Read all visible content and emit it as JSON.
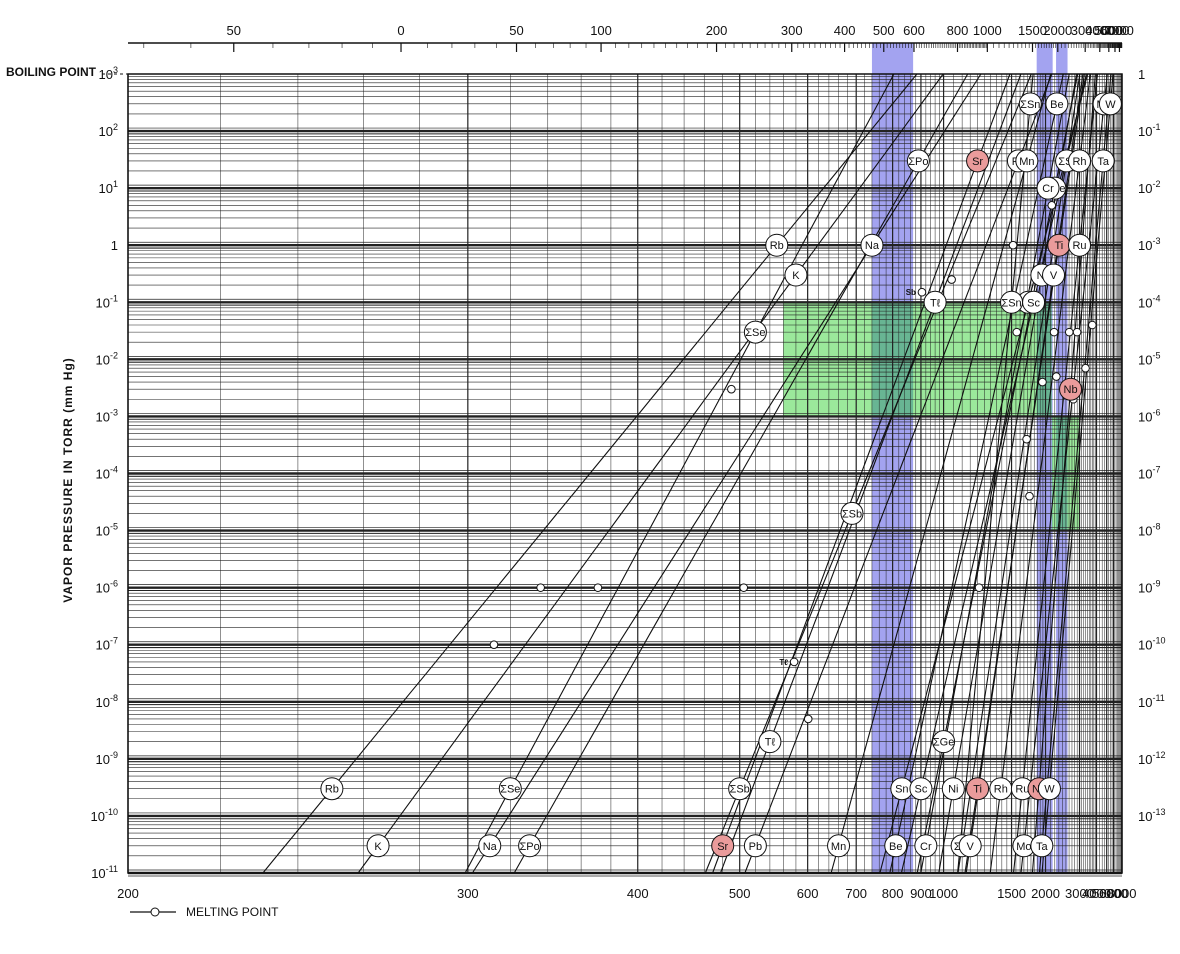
{
  "chart_data": {
    "type": "line",
    "title": "",
    "ylabel": "VAPOR PRESSURE IN TORR (mm Hg)",
    "boiling_point_label": "BOILING POINT",
    "legend": {
      "symbol": "open-circle",
      "label": "MELTING POINT"
    },
    "bottom_axis": {
      "unit": "K",
      "scale": "reciprocal",
      "range": [
        200,
        8000
      ],
      "tick_labels": [
        "200",
        "300",
        "400",
        "500",
        "600",
        "700",
        "800",
        "900",
        "1000",
        "1500",
        "2000",
        "3000",
        "4000",
        "5000",
        "6000",
        "8000"
      ],
      "tick_values": [
        200,
        300,
        400,
        500,
        600,
        700,
        800,
        900,
        1000,
        1500,
        2000,
        3000,
        4000,
        5000,
        6000,
        8000
      ]
    },
    "top_axis": {
      "unit": "°C",
      "tick_labels": [
        "50",
        "0",
        "50",
        "100",
        "200",
        "300",
        "400",
        "500",
        "600",
        "800",
        "1000",
        "1500",
        "2000",
        "3000",
        "4000",
        "5000",
        "6000",
        "7000"
      ],
      "tick_values": [
        -50,
        0,
        50,
        100,
        200,
        300,
        400,
        500,
        600,
        800,
        1000,
        1500,
        2000,
        3000,
        4000,
        5000,
        6000,
        7000
      ]
    },
    "left_axis": {
      "unit": "Torr",
      "scale": "log",
      "range": [
        1e-11,
        1000
      ],
      "tick_labels": [
        "10^-11",
        "10^-10",
        "10^-9",
        "10^-8",
        "10^-7",
        "10^-6",
        "10^-5",
        "10^-4",
        "10^-3",
        "10^-2",
        "10^-1",
        "1",
        "10^1",
        "10^2",
        "10^3"
      ],
      "tick_exponents": [
        -11,
        -10,
        -9,
        -8,
        -7,
        -6,
        -5,
        -4,
        -3,
        -2,
        -1,
        0,
        1,
        2,
        3
      ]
    },
    "right_axis": {
      "unit": "atm",
      "tick_labels": [
        "1",
        "10^-1",
        "10^-2",
        "10^-3",
        "10^-4",
        "10^-5",
        "10^-6",
        "10^-7",
        "10^-8",
        "10^-9",
        "10^-10",
        "10^-11",
        "10^-12",
        "10^-13"
      ]
    },
    "grid": true,
    "highlight_bands_temperature_K": [
      {
        "range": [
          740,
          870
        ],
        "color": "#3333dd"
      },
      {
        "range": [
          1840,
          2150
        ],
        "color": "#3333dd"
      },
      {
        "range": [
          2230,
          2550
        ],
        "color": "#3333dd"
      }
    ],
    "highlight_regions": [
      {
        "x_range_K": [
          560,
          2130
        ],
        "y_range_torr": [
          0.001,
          0.1
        ],
        "color": "#22cc22"
      },
      {
        "x_range_K": [
          2130,
          3000
        ],
        "y_range_torr": [
          1e-05,
          0.001
        ],
        "color": "#22cc22"
      }
    ],
    "series": [
      {
        "name": "Rb",
        "points": [
          [
            250,
            3e-10
          ],
          [
            550,
            1
          ]
        ]
      },
      {
        "name": "K",
        "points": [
          [
            265,
            3e-11
          ],
          [
            580,
            0.3
          ]
        ]
      },
      {
        "name": "ΣSe",
        "points": [
          [
            320,
            3e-10
          ],
          [
            520,
            0.03
          ]
        ]
      },
      {
        "name": "Na",
        "points": [
          [
            310,
            3e-11
          ],
          [
            740,
            1
          ]
        ]
      },
      {
        "name": "ΣPo",
        "points": [
          [
            330,
            3e-11
          ],
          [
            890,
            30
          ]
        ]
      },
      {
        "name": "Sr",
        "points": [
          [
            480,
            3e-11
          ],
          [
            1200,
            30
          ]
        ]
      },
      {
        "name": "ΣSb",
        "points": [
          [
            500,
            3e-10
          ],
          [
            690,
            2e-05
          ]
        ]
      },
      {
        "name": "Pb",
        "points": [
          [
            520,
            3e-11
          ],
          [
            1580,
            30
          ]
        ]
      },
      {
        "name": "Tℓ",
        "points": [
          [
            540,
            2e-09
          ],
          [
            960,
            0.1
          ]
        ]
      },
      {
        "name": "Mn",
        "points": [
          [
            660,
            3e-11
          ],
          [
            1690,
            30
          ]
        ]
      },
      {
        "name": "Sn",
        "points": [
          [
            830,
            3e-10
          ],
          [
            1710,
            0.1
          ]
        ]
      },
      {
        "name": "ΣGe",
        "points": [
          [
            1000,
            2e-09
          ],
          [
            2200,
            10
          ]
        ]
      },
      {
        "name": "Be",
        "points": [
          [
            810,
            3e-11
          ],
          [
            2250,
            300
          ]
        ]
      },
      {
        "name": "ΣSn",
        "points": [
          [
            1500,
            0.1
          ],
          [
            1740,
            300
          ]
        ]
      },
      {
        "name": "Sc",
        "points": [
          [
            900,
            3e-10
          ],
          [
            1790,
            0.1
          ]
        ]
      },
      {
        "name": "Cr",
        "points": [
          [
            920,
            3e-11
          ],
          [
            2050,
            10
          ]
        ]
      },
      {
        "name": "Ni",
        "points": [
          [
            1050,
            3e-10
          ],
          [
            1930,
            0.3
          ]
        ]
      },
      {
        "name": "ΣSi",
        "points": [
          [
            1100,
            3e-11
          ],
          [
            2520,
            30
          ]
        ]
      },
      {
        "name": "Ti",
        "points": [
          [
            1200,
            3e-10
          ],
          [
            2300,
            1
          ]
        ]
      },
      {
        "name": "V",
        "points": [
          [
            1150,
            3e-11
          ],
          [
            2170,
            0.3
          ]
        ]
      },
      {
        "name": "Rh",
        "points": [
          [
            1390,
            3e-10
          ],
          [
            3000,
            30
          ]
        ]
      },
      {
        "name": "Mo",
        "points": [
          [
            1650,
            3e-11
          ],
          [
            4700,
            300
          ]
        ]
      },
      {
        "name": "Ru",
        "points": [
          [
            1630,
            3e-10
          ],
          [
            3000,
            1
          ]
        ]
      },
      {
        "name": "Nb",
        "points": [
          [
            1880,
            3e-10
          ],
          [
            2650,
            0.003
          ]
        ]
      },
      {
        "name": "Ta",
        "points": [
          [
            1930,
            3e-11
          ],
          [
            4600,
            30
          ]
        ]
      },
      {
        "name": "W",
        "points": [
          [
            2080,
            3e-10
          ],
          [
            5500,
            300
          ]
        ]
      }
    ],
    "series_colors": {
      "Sr": "#ea9b9b",
      "Ti": "#ea9b9b",
      "Nb": "#ea9b9b"
    },
    "melting_points": [
      {
        "element": "K",
        "T": 336,
        "P": 1e-06
      },
      {
        "element": "Na",
        "T": 371,
        "P": 1e-06
      },
      {
        "element": "Rb",
        "T": 312,
        "P": 1e-07
      },
      {
        "element": "ΣSe",
        "T": 490,
        "P": 0.003
      },
      {
        "element": "Tℓ",
        "T": 577,
        "P": 5e-08
      },
      {
        "element": "Pb",
        "T": 601,
        "P": 5e-09
      },
      {
        "element": "Sn",
        "T": 505,
        "P": 1e-06
      },
      {
        "element": "Sb",
        "T": 904,
        "P": 0.15
      },
      {
        "element": "Sr",
        "T": 1041,
        "P": 0.25
      },
      {
        "element": "Sc",
        "T": 1812,
        "P": 0.08
      },
      {
        "element": "Be",
        "T": 1560,
        "P": 0.03
      },
      {
        "element": "Ge",
        "T": 1211,
        "P": 1e-06
      },
      {
        "element": "Mn",
        "T": 1517,
        "P": 1
      },
      {
        "element": "Cr",
        "T": 2130,
        "P": 5
      },
      {
        "element": "Ni",
        "T": 1728,
        "P": 4e-05
      },
      {
        "element": "ΣSi",
        "T": 1687,
        "P": 0.0004
      },
      {
        "element": "Ti",
        "T": 1941,
        "P": 0.004
      },
      {
        "element": "V",
        "T": 2183,
        "P": 0.03
      },
      {
        "element": "Ru",
        "T": 2607,
        "P": 0.03
      },
      {
        "element": "Rh",
        "T": 2237,
        "P": 0.005
      },
      {
        "element": "Nb",
        "T": 2750,
        "P": 0.002
      },
      {
        "element": "Mo",
        "T": 2896,
        "P": 0.03
      },
      {
        "element": "Ta",
        "T": 3290,
        "P": 0.007
      },
      {
        "element": "W",
        "T": 3695,
        "P": 0.04
      }
    ],
    "sc_mp_label": "Sc",
    "sb_mp_label": "Sb",
    "tl_mp_label": "Tℓ"
  }
}
